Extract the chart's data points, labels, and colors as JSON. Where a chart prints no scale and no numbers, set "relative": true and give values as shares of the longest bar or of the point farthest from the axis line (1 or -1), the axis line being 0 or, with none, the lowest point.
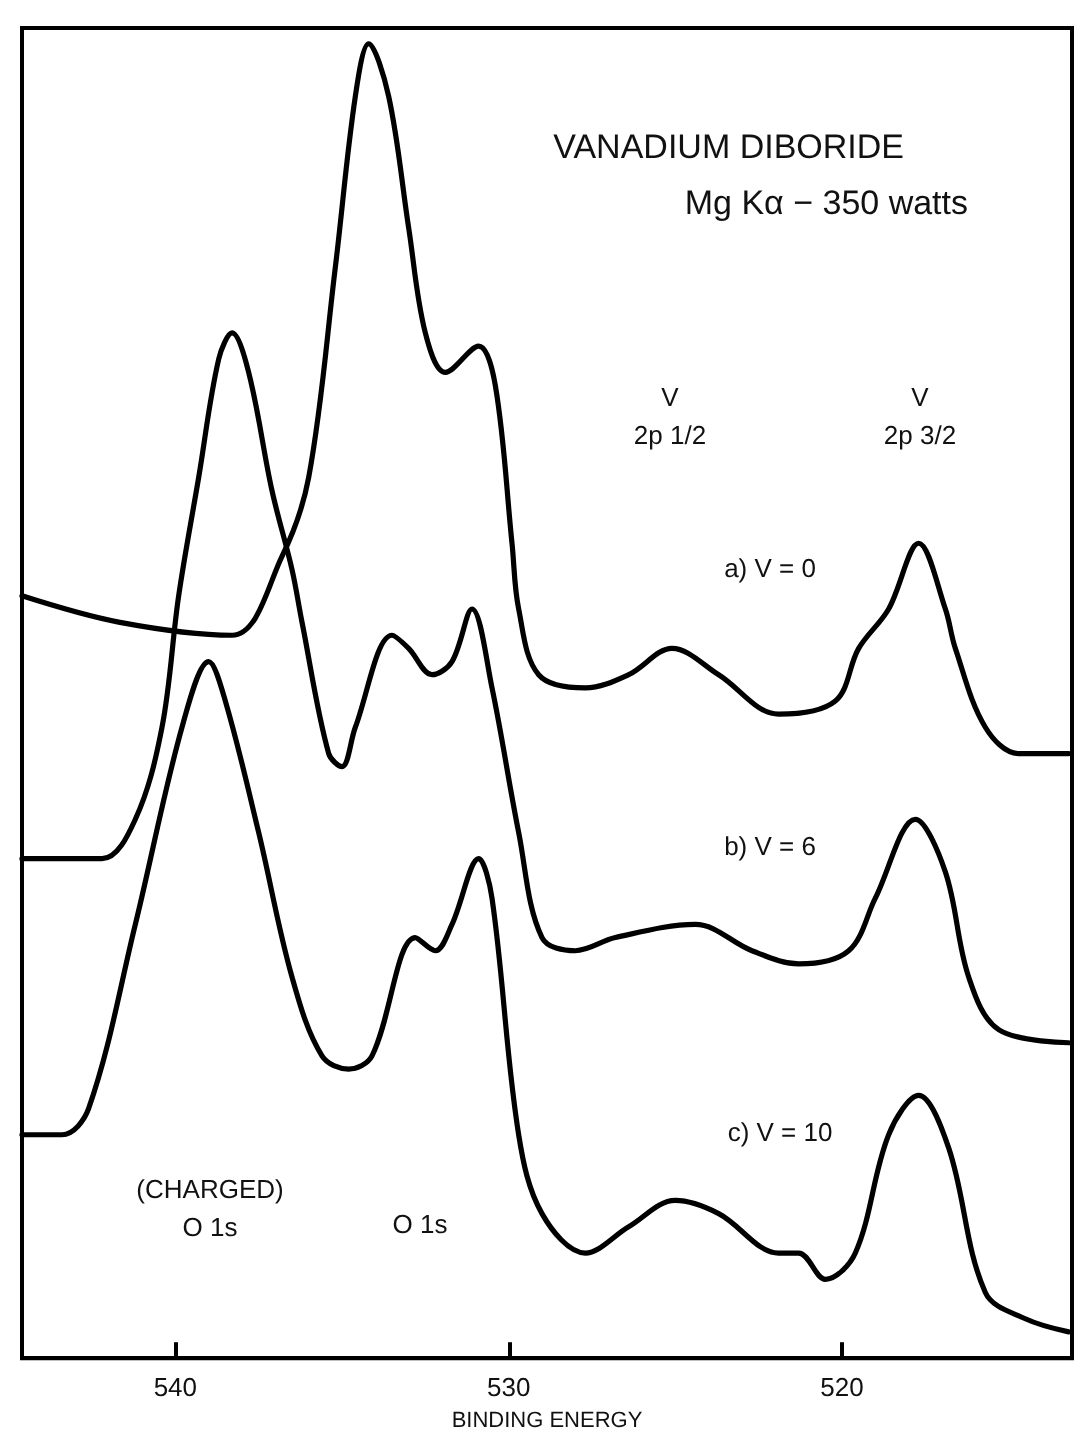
{
  "chart_data": {
    "type": "line",
    "relative": true,
    "title": "VANADIUM DIBORIDE",
    "subtitle": "Mg Kα − 350 watts",
    "xlabel": "BINDING ENERGY",
    "xlim": [
      544.6,
      513.1
    ],
    "xticks": [
      540,
      530,
      520
    ],
    "grid": false,
    "marker": "none",
    "line_style": "solid",
    "series": [
      {
        "name": "a) V = 0",
        "color": "#000000",
        "x": [
          544.6,
          541.7,
          538.3,
          536.8,
          536.0,
          535.2,
          534.6,
          534.2,
          533.6,
          533.0,
          532.5,
          531.9,
          530.9,
          530.4,
          529.9,
          529.7,
          529.1,
          527.7,
          526.4,
          525.1,
          523.7,
          521.9,
          520.2,
          519.5,
          518.6,
          517.7,
          516.9,
          516.6,
          515.7,
          514.7,
          513.2
        ],
        "values": [
          0.58,
          0.56,
          0.55,
          0.61,
          0.67,
          0.83,
          0.96,
          1.0,
          0.96,
          0.86,
          0.78,
          0.75,
          0.77,
          0.74,
          0.62,
          0.57,
          0.52,
          0.51,
          0.52,
          0.54,
          0.52,
          0.49,
          0.5,
          0.54,
          0.57,
          0.62,
          0.57,
          0.54,
          0.48,
          0.46,
          0.46
        ]
      },
      {
        "name": "b) V = 6",
        "color": "#000000",
        "x": [
          544.6,
          542.2,
          541.2,
          540.4,
          539.9,
          539.3,
          538.7,
          538.3,
          537.8,
          537.1,
          536.5,
          536.2,
          535.4,
          535.0,
          534.6,
          533.5,
          533.0,
          532.3,
          531.7,
          531.1,
          530.5,
          529.7,
          529.0,
          528.0,
          526.8,
          524.4,
          522.7,
          521.3,
          519.8,
          519.0,
          517.8,
          516.9,
          516.2,
          515.3,
          513.2
        ],
        "values": [
          0.38,
          0.38,
          0.41,
          0.48,
          0.58,
          0.67,
          0.76,
          0.78,
          0.75,
          0.66,
          0.6,
          0.56,
          0.46,
          0.45,
          0.48,
          0.55,
          0.54,
          0.52,
          0.53,
          0.57,
          0.51,
          0.4,
          0.32,
          0.31,
          0.32,
          0.33,
          0.31,
          0.3,
          0.31,
          0.35,
          0.41,
          0.37,
          0.29,
          0.25,
          0.24
        ]
      },
      {
        "name": "c) V = 10",
        "color": "#000000",
        "x": [
          544.6,
          543.4,
          542.6,
          541.2,
          539.8,
          539.0,
          538.5,
          537.5,
          536.5,
          535.6,
          534.8,
          534.1,
          532.8,
          532.2,
          531.7,
          530.9,
          530.5,
          529.7,
          529.0,
          527.7,
          526.4,
          525.0,
          523.7,
          521.9,
          521.3,
          520.5,
          519.6,
          518.6,
          517.7,
          516.8,
          515.7,
          514.5,
          513.2
        ],
        "values": [
          0.17,
          0.17,
          0.19,
          0.33,
          0.48,
          0.53,
          0.5,
          0.4,
          0.29,
          0.23,
          0.22,
          0.23,
          0.32,
          0.31,
          0.33,
          0.38,
          0.35,
          0.17,
          0.11,
          0.08,
          0.1,
          0.12,
          0.11,
          0.08,
          0.08,
          0.06,
          0.08,
          0.17,
          0.2,
          0.16,
          0.05,
          0.03,
          0.02
        ]
      }
    ],
    "annotations": [
      "V\n2p 1/2",
      "V\n2p 3/2",
      "(CHARGED)\nO 1s",
      "O 1s"
    ]
  }
}
